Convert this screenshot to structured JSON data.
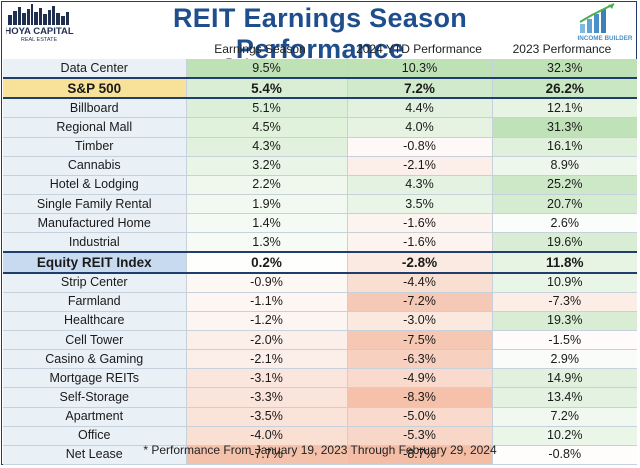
{
  "header": {
    "title": "REIT Earnings Season Performance",
    "logo_left_line1": "HOYA CAPITAL",
    "logo_left_line2": "REAL ESTATE",
    "logo_right_text": "INCOME BUILDER"
  },
  "columns": [
    "Earnings Season Performance",
    "2024 YTD Performance",
    "2023 Performance"
  ],
  "footnote": "* Performance From January 19, 2023 Through February 29, 2024",
  "colors": {
    "title": "#1f4e8c",
    "sp500_label_bg": "#f8e29a",
    "equity_label_bg": "#c8daef",
    "positive": "#cfe6c5",
    "negative": "#f4c3a9"
  },
  "chart_data": {
    "type": "table",
    "title": "REIT Earnings Season Performance",
    "columns": [
      "Earnings Season Performance",
      "2024 YTD Performance",
      "2023 Performance"
    ],
    "rows": [
      {
        "label": "Data Center",
        "values": [
          "9.5%",
          "10.3%",
          "32.3%"
        ],
        "highlight": ""
      },
      {
        "label": "S&P 500",
        "values": [
          "5.4%",
          "7.2%",
          "26.2%"
        ],
        "highlight": "sp"
      },
      {
        "label": "Billboard",
        "values": [
          "5.1%",
          "4.4%",
          "12.1%"
        ],
        "highlight": ""
      },
      {
        "label": "Regional Mall",
        "values": [
          "4.5%",
          "4.0%",
          "31.3%"
        ],
        "highlight": ""
      },
      {
        "label": "Timber",
        "values": [
          "4.3%",
          "-0.8%",
          "16.1%"
        ],
        "highlight": ""
      },
      {
        "label": "Cannabis",
        "values": [
          "3.2%",
          "-2.1%",
          "8.9%"
        ],
        "highlight": ""
      },
      {
        "label": "Hotel & Lodging",
        "values": [
          "2.2%",
          "4.3%",
          "25.2%"
        ],
        "highlight": ""
      },
      {
        "label": "Single Family Rental",
        "values": [
          "1.9%",
          "3.5%",
          "20.7%"
        ],
        "highlight": ""
      },
      {
        "label": "Manufactured Home",
        "values": [
          "1.4%",
          "-1.6%",
          "2.6%"
        ],
        "highlight": ""
      },
      {
        "label": "Industrial",
        "values": [
          "1.3%",
          "-1.6%",
          "19.6%"
        ],
        "highlight": ""
      },
      {
        "label": "Equity REIT Index",
        "values": [
          "0.2%",
          "-2.8%",
          "11.8%"
        ],
        "highlight": "eq"
      },
      {
        "label": "Strip Center",
        "values": [
          "-0.9%",
          "-4.4%",
          "10.9%"
        ],
        "highlight": ""
      },
      {
        "label": "Farmland",
        "values": [
          "-1.1%",
          "-7.2%",
          "-7.3%"
        ],
        "highlight": ""
      },
      {
        "label": "Healthcare",
        "values": [
          "-1.2%",
          "-3.0%",
          "19.3%"
        ],
        "highlight": ""
      },
      {
        "label": "Cell Tower",
        "values": [
          "-2.0%",
          "-7.5%",
          "-1.5%"
        ],
        "highlight": ""
      },
      {
        "label": "Casino & Gaming",
        "values": [
          "-2.1%",
          "-6.3%",
          "2.9%"
        ],
        "highlight": ""
      },
      {
        "label": "Mortgage REITs",
        "values": [
          "-3.1%",
          "-4.9%",
          "14.9%"
        ],
        "highlight": ""
      },
      {
        "label": "Self-Storage",
        "values": [
          "-3.3%",
          "-8.3%",
          "13.4%"
        ],
        "highlight": ""
      },
      {
        "label": "Apartment",
        "values": [
          "-3.5%",
          "-5.0%",
          "7.2%"
        ],
        "highlight": ""
      },
      {
        "label": "Office",
        "values": [
          "-4.0%",
          "-5.3%",
          "10.2%"
        ],
        "highlight": ""
      },
      {
        "label": "Net Lease",
        "values": [
          "-7.7%",
          "-8.7%",
          "-0.8%"
        ],
        "highlight": ""
      }
    ]
  }
}
